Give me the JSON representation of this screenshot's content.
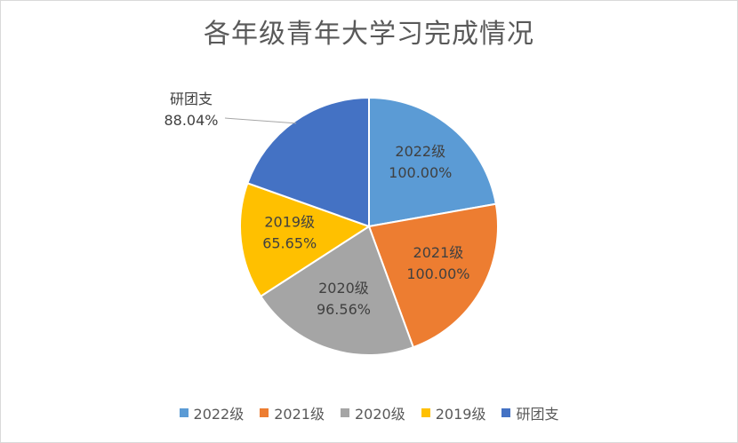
{
  "chart_data": {
    "type": "pie",
    "title": "各年级青年大学习完成情况",
    "categories": [
      "2022级",
      "2021级",
      "2020级",
      "2019级",
      "研团支"
    ],
    "values": [
      100.0,
      100.0,
      96.56,
      65.65,
      88.04
    ],
    "value_labels": [
      "100.00%",
      "100.00%",
      "96.56%",
      "65.65%",
      "88.04%"
    ],
    "colors": [
      "#5B9BD5",
      "#ED7D31",
      "#A5A5A5",
      "#FFC000",
      "#4472C4"
    ],
    "legend_position": "bottom"
  }
}
